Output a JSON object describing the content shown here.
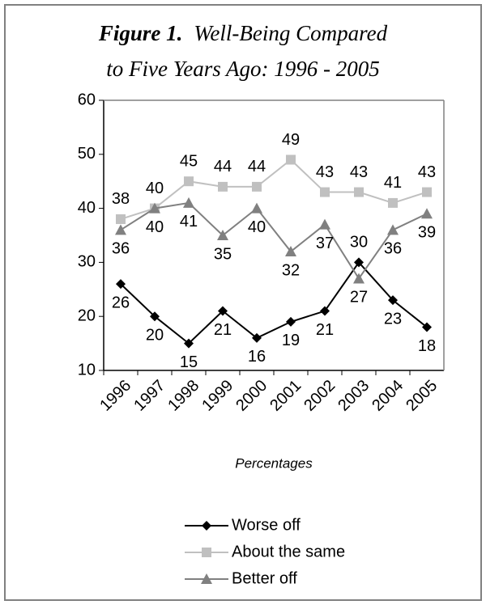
{
  "chart_data": {
    "type": "line",
    "figure_label": "Figure 1.",
    "title_lines": [
      "Well-Being Compared",
      "to Five Years Ago:  1996 - 2005"
    ],
    "x_label": "Percentages",
    "categories": [
      "1996",
      "1997",
      "1998",
      "1999",
      "2000",
      "2001",
      "2002",
      "2003",
      "2004",
      "2005"
    ],
    "series": [
      {
        "name": "Worse off",
        "color": "#000000",
        "marker": "diamond",
        "values": [
          26,
          20,
          15,
          21,
          16,
          19,
          21,
          30,
          23,
          18
        ]
      },
      {
        "name": "About the same",
        "color": "#c0c0c0",
        "marker": "square",
        "values": [
          38,
          40,
          45,
          44,
          44,
          49,
          43,
          43,
          41,
          43
        ]
      },
      {
        "name": "Better off",
        "color": "#808080",
        "marker": "triangle",
        "values": [
          36,
          40,
          41,
          35,
          40,
          32,
          37,
          27,
          36,
          39
        ]
      }
    ],
    "ylim": [
      10,
      60
    ],
    "yticks": [
      10,
      20,
      30,
      40,
      50,
      60
    ],
    "grid": false,
    "data_labels": true,
    "legend": "bottom"
  }
}
